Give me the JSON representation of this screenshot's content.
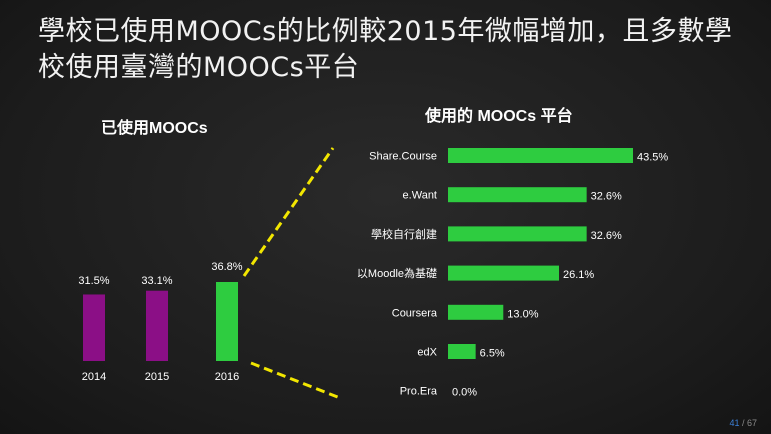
{
  "slide": {
    "title": "學校已使用MOOCs的比例較2015年微幅增加，且多數學校使用臺灣的MOOCs平台",
    "page_current": "41",
    "page_total": "/ 67"
  },
  "colors": {
    "left_bar": "#8b0f86",
    "left_bar_highlight": "#2ecc40",
    "right_bar": "#2ecc40",
    "connector": "#f2e600"
  },
  "chart_data": [
    {
      "type": "bar",
      "title": "已使用MOOCs",
      "categories": [
        "2014",
        "2015",
        "2016"
      ],
      "values": [
        31.5,
        33.1,
        36.8
      ],
      "value_labels": [
        "31.5%",
        "33.1%",
        "36.8%"
      ],
      "highlight_index": 2,
      "xlabel": "",
      "ylabel": "",
      "ylim": [
        0,
        40
      ],
      "grid": false
    },
    {
      "type": "bar",
      "orientation": "horizontal",
      "title": "使用的 MOOCs 平台",
      "categories": [
        "Share.Course",
        "e.Want",
        "學校自行創建",
        "以Moodle為基礎",
        "Coursera",
        "edX",
        "Pro.Era"
      ],
      "values": [
        43.5,
        32.6,
        32.6,
        26.1,
        13.0,
        6.5,
        0.0
      ],
      "value_labels": [
        "43.5%",
        "32.6%",
        "32.6%",
        "26.1%",
        "13.0%",
        "6.5%",
        "0.0%"
      ],
      "xlabel": "",
      "ylabel": "",
      "xlim": [
        0,
        45
      ],
      "grid": false
    }
  ]
}
